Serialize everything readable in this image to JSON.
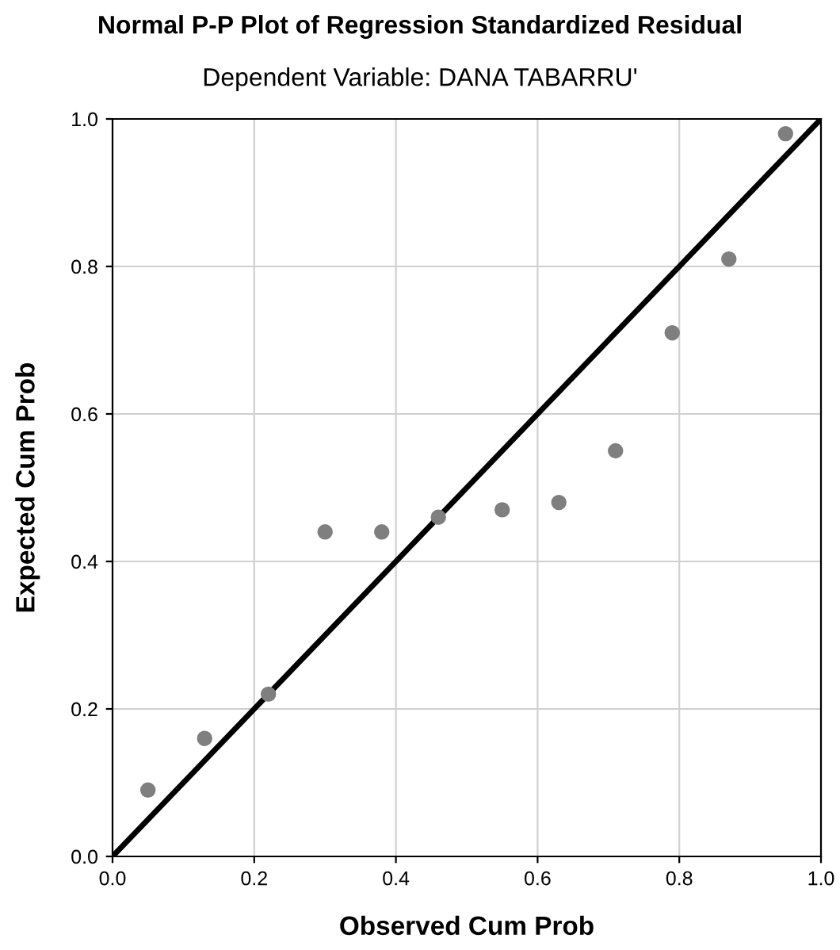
{
  "chart_data": {
    "type": "scatter",
    "title": "Normal P-P Plot of Regression Standardized Residual",
    "subtitle": "Dependent Variable: DANA TABARRU'",
    "xlabel": "Observed Cum Prob",
    "ylabel": "Expected Cum Prob",
    "series": [
      {
        "color": "#7f7f7f",
        "marker": "circle",
        "x": [
          0.05,
          0.13,
          0.22,
          0.3,
          0.38,
          0.46,
          0.55,
          0.63,
          0.71,
          0.79,
          0.87,
          0.95
        ],
        "values": [
          0.09,
          0.16,
          0.22,
          0.44,
          0.44,
          0.46,
          0.47,
          0.48,
          0.55,
          0.71,
          0.81,
          0.98
        ]
      },
      {
        "type": "line",
        "color": "#000000",
        "line_style": "solid",
        "x": [
          0.0,
          1.0
        ],
        "values": [
          0.0,
          1.0
        ]
      }
    ],
    "xlim": [
      0.0,
      1.0
    ],
    "ylim": [
      0.0,
      1.0
    ],
    "xticks": [
      {
        "value": 0.0,
        "label": "0.0"
      },
      {
        "value": 0.2,
        "label": "0.2"
      },
      {
        "value": 0.4,
        "label": "0.4"
      },
      {
        "value": 0.6,
        "label": "0.6"
      },
      {
        "value": 0.8,
        "label": "0.8"
      },
      {
        "value": 1.0,
        "label": "1.0"
      }
    ],
    "yticks": [
      {
        "value": 0.0,
        "label": "0.0"
      },
      {
        "value": 0.2,
        "label": "0.2"
      },
      {
        "value": 0.4,
        "label": "0.4"
      },
      {
        "value": 0.6,
        "label": "0.6"
      },
      {
        "value": 0.8,
        "label": "0.8"
      },
      {
        "value": 1.0,
        "label": "1.0"
      }
    ],
    "grid": true
  }
}
